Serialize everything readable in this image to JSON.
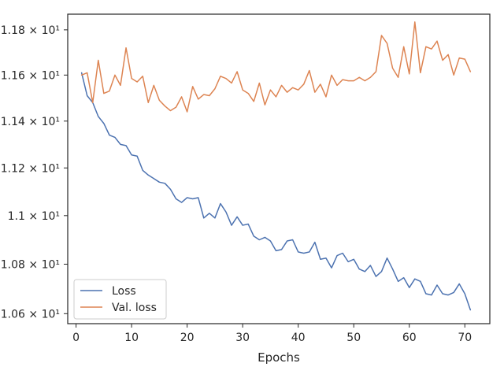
{
  "chart_data": {
    "type": "line",
    "title": "",
    "xlabel": "Epochs",
    "ylabel": "",
    "y_scale": "log",
    "grid": false,
    "legend_position": "lower-left",
    "xlim": [
      -1.5,
      74.5
    ],
    "ylim": [
      10.56,
      11.87
    ],
    "x_ticks": [
      0,
      10,
      20,
      30,
      40,
      50,
      60,
      70
    ],
    "x_tick_labels": [
      "0",
      "10",
      "20",
      "30",
      "40",
      "50",
      "60",
      "70"
    ],
    "y_ticks": [
      10.6,
      10.8,
      11.0,
      11.2,
      11.4,
      11.6,
      11.8
    ],
    "y_tick_labels": [
      "1.06 × 10¹",
      "1.08 × 10¹",
      "1.1 × 10¹",
      "1.12 × 10¹",
      "1.14 × 10¹",
      "1.16 × 10¹",
      "1.18 × 10¹"
    ],
    "series": [
      {
        "name": "Loss",
        "color": "#4c72b0",
        "x": [
          1,
          2,
          3,
          4,
          5,
          6,
          7,
          8,
          9,
          10,
          11,
          12,
          13,
          14,
          15,
          16,
          17,
          18,
          19,
          20,
          21,
          22,
          23,
          24,
          25,
          26,
          27,
          28,
          29,
          30,
          31,
          32,
          33,
          34,
          35,
          36,
          37,
          38,
          39,
          40,
          41,
          42,
          43,
          44,
          45,
          46,
          47,
          48,
          49,
          50,
          51,
          52,
          53,
          54,
          55,
          56,
          57,
          58,
          59,
          60,
          61,
          62,
          63,
          64,
          65,
          66,
          67,
          68,
          69,
          70,
          71
        ],
        "values": [
          11.61,
          11.51,
          11.48,
          11.42,
          11.39,
          11.34,
          11.33,
          11.3,
          11.295,
          11.255,
          11.25,
          11.19,
          11.17,
          11.155,
          11.14,
          11.135,
          11.11,
          11.07,
          11.055,
          11.075,
          11.07,
          11.075,
          10.99,
          11.01,
          10.99,
          11.05,
          11.015,
          10.96,
          10.995,
          10.96,
          10.965,
          10.915,
          10.9,
          10.91,
          10.895,
          10.855,
          10.86,
          10.895,
          10.9,
          10.85,
          10.845,
          10.85,
          10.89,
          10.82,
          10.825,
          10.785,
          10.835,
          10.845,
          10.81,
          10.82,
          10.78,
          10.77,
          10.795,
          10.75,
          10.77,
          10.825,
          10.78,
          10.73,
          10.745,
          10.705,
          10.74,
          10.73,
          10.68,
          10.675,
          10.715,
          10.68,
          10.675,
          10.685,
          10.72,
          10.68,
          10.615
        ]
      },
      {
        "name": "Val. loss",
        "color": "#dd8452",
        "x": [
          1,
          2,
          3,
          4,
          5,
          6,
          7,
          8,
          9,
          10,
          11,
          12,
          13,
          14,
          15,
          16,
          17,
          18,
          19,
          20,
          21,
          22,
          23,
          24,
          25,
          26,
          27,
          28,
          29,
          30,
          31,
          32,
          33,
          34,
          35,
          36,
          37,
          38,
          39,
          40,
          41,
          42,
          43,
          44,
          45,
          46,
          47,
          48,
          49,
          50,
          51,
          52,
          53,
          54,
          55,
          56,
          57,
          58,
          59,
          60,
          61,
          62,
          63,
          64,
          65,
          66,
          67,
          68,
          69,
          70,
          71
        ],
        "values": [
          11.6,
          11.61,
          11.48,
          11.665,
          11.52,
          11.53,
          11.6,
          11.555,
          11.72,
          11.585,
          11.57,
          11.595,
          11.48,
          11.555,
          11.49,
          11.465,
          11.445,
          11.46,
          11.505,
          11.44,
          11.55,
          11.495,
          11.515,
          11.51,
          11.54,
          11.595,
          11.585,
          11.565,
          11.615,
          11.535,
          11.52,
          11.485,
          11.565,
          11.47,
          11.535,
          11.505,
          11.555,
          11.525,
          11.545,
          11.535,
          11.56,
          11.62,
          11.525,
          11.56,
          11.505,
          11.6,
          11.555,
          11.58,
          11.575,
          11.575,
          11.59,
          11.575,
          11.59,
          11.615,
          11.775,
          11.74,
          11.63,
          11.59,
          11.725,
          11.605,
          11.835,
          11.61,
          11.725,
          11.715,
          11.75,
          11.665,
          11.69,
          11.6,
          11.675,
          11.67,
          11.615
        ]
      }
    ]
  }
}
